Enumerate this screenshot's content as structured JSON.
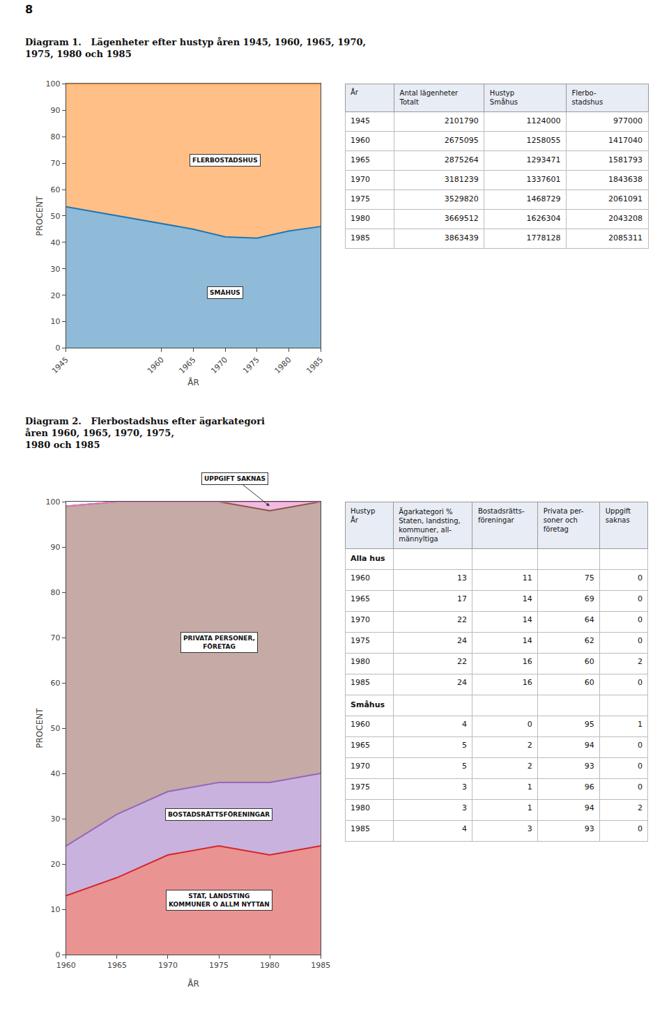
{
  "chart_data": [
    {
      "type": "area",
      "stacked": true,
      "title": "Diagram 1.   Lägenheter efter hustyp åren 1945, 1960, 1965, 1970,\n1975, 1980 och 1985",
      "annotations": [
        "8"
      ],
      "xlabel": "ÅR",
      "ylabel": "PROCENT",
      "x": [
        1945,
        1960,
        1965,
        1970,
        1975,
        1980,
        1985
      ],
      "series": [
        {
          "name": "SMÅHUS",
          "values": [
            53.5,
            47.0,
            45.0,
            42.1,
            41.6,
            44.3,
            46.0
          ]
        },
        {
          "name": "FLERBOSTADSHUS",
          "values": [
            46.5,
            53.0,
            55.0,
            57.9,
            58.4,
            55.7,
            54.0
          ]
        }
      ],
      "xlim": [
        1945,
        1985
      ],
      "xticks": [
        1945,
        1960,
        1965,
        1970,
        1975,
        1980,
        1985
      ],
      "ylim": [
        0,
        100
      ],
      "yticks": [
        0,
        10,
        20,
        30,
        40,
        50,
        60,
        70,
        80,
        90,
        100
      ],
      "grid": false
    },
    {
      "type": "table",
      "header": [
        [
          "År"
        ],
        [
          "Antal lägenheter",
          "Totalt"
        ],
        [
          "Hustyp",
          "Småhus"
        ],
        [
          "Flerbo-",
          "stadshus"
        ]
      ],
      "rows": [
        [
          1945,
          2101790,
          1124000,
          977000
        ],
        [
          1960,
          2675095,
          1258055,
          1417040
        ],
        [
          1965,
          2875264,
          1293471,
          1581793
        ],
        [
          1970,
          3181239,
          1337601,
          1843638
        ],
        [
          1975,
          3529820,
          1468729,
          2061091
        ],
        [
          1980,
          3669512,
          1626304,
          2043208
        ],
        [
          1985,
          3863439,
          1778128,
          2085311
        ]
      ]
    },
    {
      "type": "area",
      "stacked": true,
      "title": "Diagram 2.   Flerbostadshus efter ägarkategori\nåren 1960, 1965, 1970, 1975,\n1980 och 1985",
      "xlabel": "ÅR",
      "ylabel": "PROCENT",
      "x": [
        1960,
        1965,
        1970,
        1975,
        1980,
        1985
      ],
      "series": [
        {
          "name": "STAT, LANDSTING\nKOMMUNER O ALLM NYTTAN",
          "values": [
            13,
            17,
            22,
            24,
            22,
            24
          ]
        },
        {
          "name": "BOSTADSRÄTTSFÖRENINGAR",
          "values": [
            11,
            14,
            14,
            14,
            16,
            16
          ]
        },
        {
          "name": "PRIVATA PERSONER,\nFÖRETAG",
          "values": [
            75,
            69,
            64,
            62,
            60,
            60
          ]
        },
        {
          "name": "UPPGIFT SAKNAS",
          "values": [
            0,
            0,
            0,
            0,
            2,
            0
          ]
        }
      ],
      "xlim": [
        1960,
        1985
      ],
      "xticks": [
        1960,
        1965,
        1970,
        1975,
        1980,
        1985
      ],
      "ylim": [
        0,
        100
      ],
      "yticks": [
        0,
        10,
        20,
        30,
        40,
        50,
        60,
        70,
        80,
        90,
        100
      ],
      "grid": false
    },
    {
      "type": "table",
      "header": [
        [
          "Hustyp",
          "År"
        ],
        [
          "Ägarkategori %",
          "Staten, landsting,",
          "kommuner, all-",
          "männyltiga"
        ],
        [
          "Bostadsrätts-",
          "föreningar"
        ],
        [
          "Privata per-",
          "soner och",
          "företag"
        ],
        [
          "Uppgift",
          "saknas"
        ]
      ],
      "sections": [
        {
          "name": "Alla hus",
          "rows": [
            [
              1960,
              13,
              11,
              75,
              0
            ],
            [
              1965,
              17,
              14,
              69,
              0
            ],
            [
              1970,
              22,
              14,
              64,
              0
            ],
            [
              1975,
              24,
              14,
              62,
              0
            ],
            [
              1980,
              22,
              16,
              60,
              2
            ],
            [
              1985,
              24,
              16,
              60,
              0
            ]
          ]
        },
        {
          "name": "Småhus",
          "rows": [
            [
              1960,
              4,
              0,
              95,
              1
            ],
            [
              1965,
              5,
              2,
              94,
              0
            ],
            [
              1970,
              5,
              2,
              93,
              0
            ],
            [
              1975,
              3,
              1,
              96,
              0
            ],
            [
              1980,
              3,
              1,
              94,
              2
            ],
            [
              1985,
              4,
              3,
              93,
              0
            ]
          ]
        }
      ]
    }
  ]
}
